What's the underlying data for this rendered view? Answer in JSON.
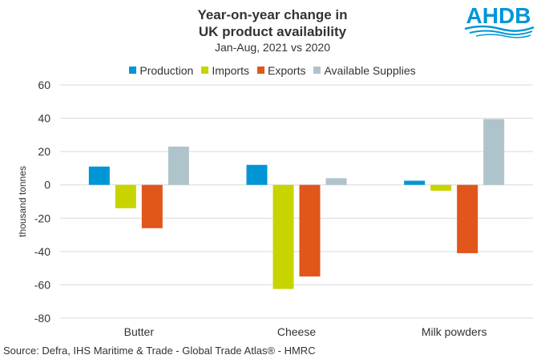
{
  "header": {
    "title_line1": "Year-on-year change in",
    "title_line2": "UK product availability",
    "subtitle": "Jan-Aug, 2021 vs 2020"
  },
  "logo": {
    "text": "AHDB",
    "color": "#0096d6"
  },
  "footer": {
    "source": "Source: Defra, IHS Maritime & Trade - Global Trade Atlas® - HMRC"
  },
  "chart_data": {
    "type": "bar",
    "title": "Year-on-year change in UK product availability",
    "subtitle": "Jan-Aug, 2021 vs 2020",
    "ylabel": "thousand tonnes",
    "xlabel": "",
    "categories": [
      "Butter",
      "Cheese",
      "Milk powders"
    ],
    "ylim": [
      -80,
      60
    ],
    "yticks": [
      60,
      40,
      20,
      0,
      -20,
      -40,
      -60,
      -80
    ],
    "grid": true,
    "legend_position": "top",
    "series": [
      {
        "name": "Production",
        "color": "#0096d6",
        "values": [
          11,
          12,
          2.5
        ]
      },
      {
        "name": "Imports",
        "color": "#c8d400",
        "values": [
          -14,
          -62.5,
          -3.5
        ]
      },
      {
        "name": "Exports",
        "color": "#e0561b",
        "values": [
          -26,
          -55,
          -41
        ]
      },
      {
        "name": "Available Supplies",
        "color": "#afc3cb",
        "values": [
          23,
          4,
          39.5
        ]
      }
    ]
  }
}
